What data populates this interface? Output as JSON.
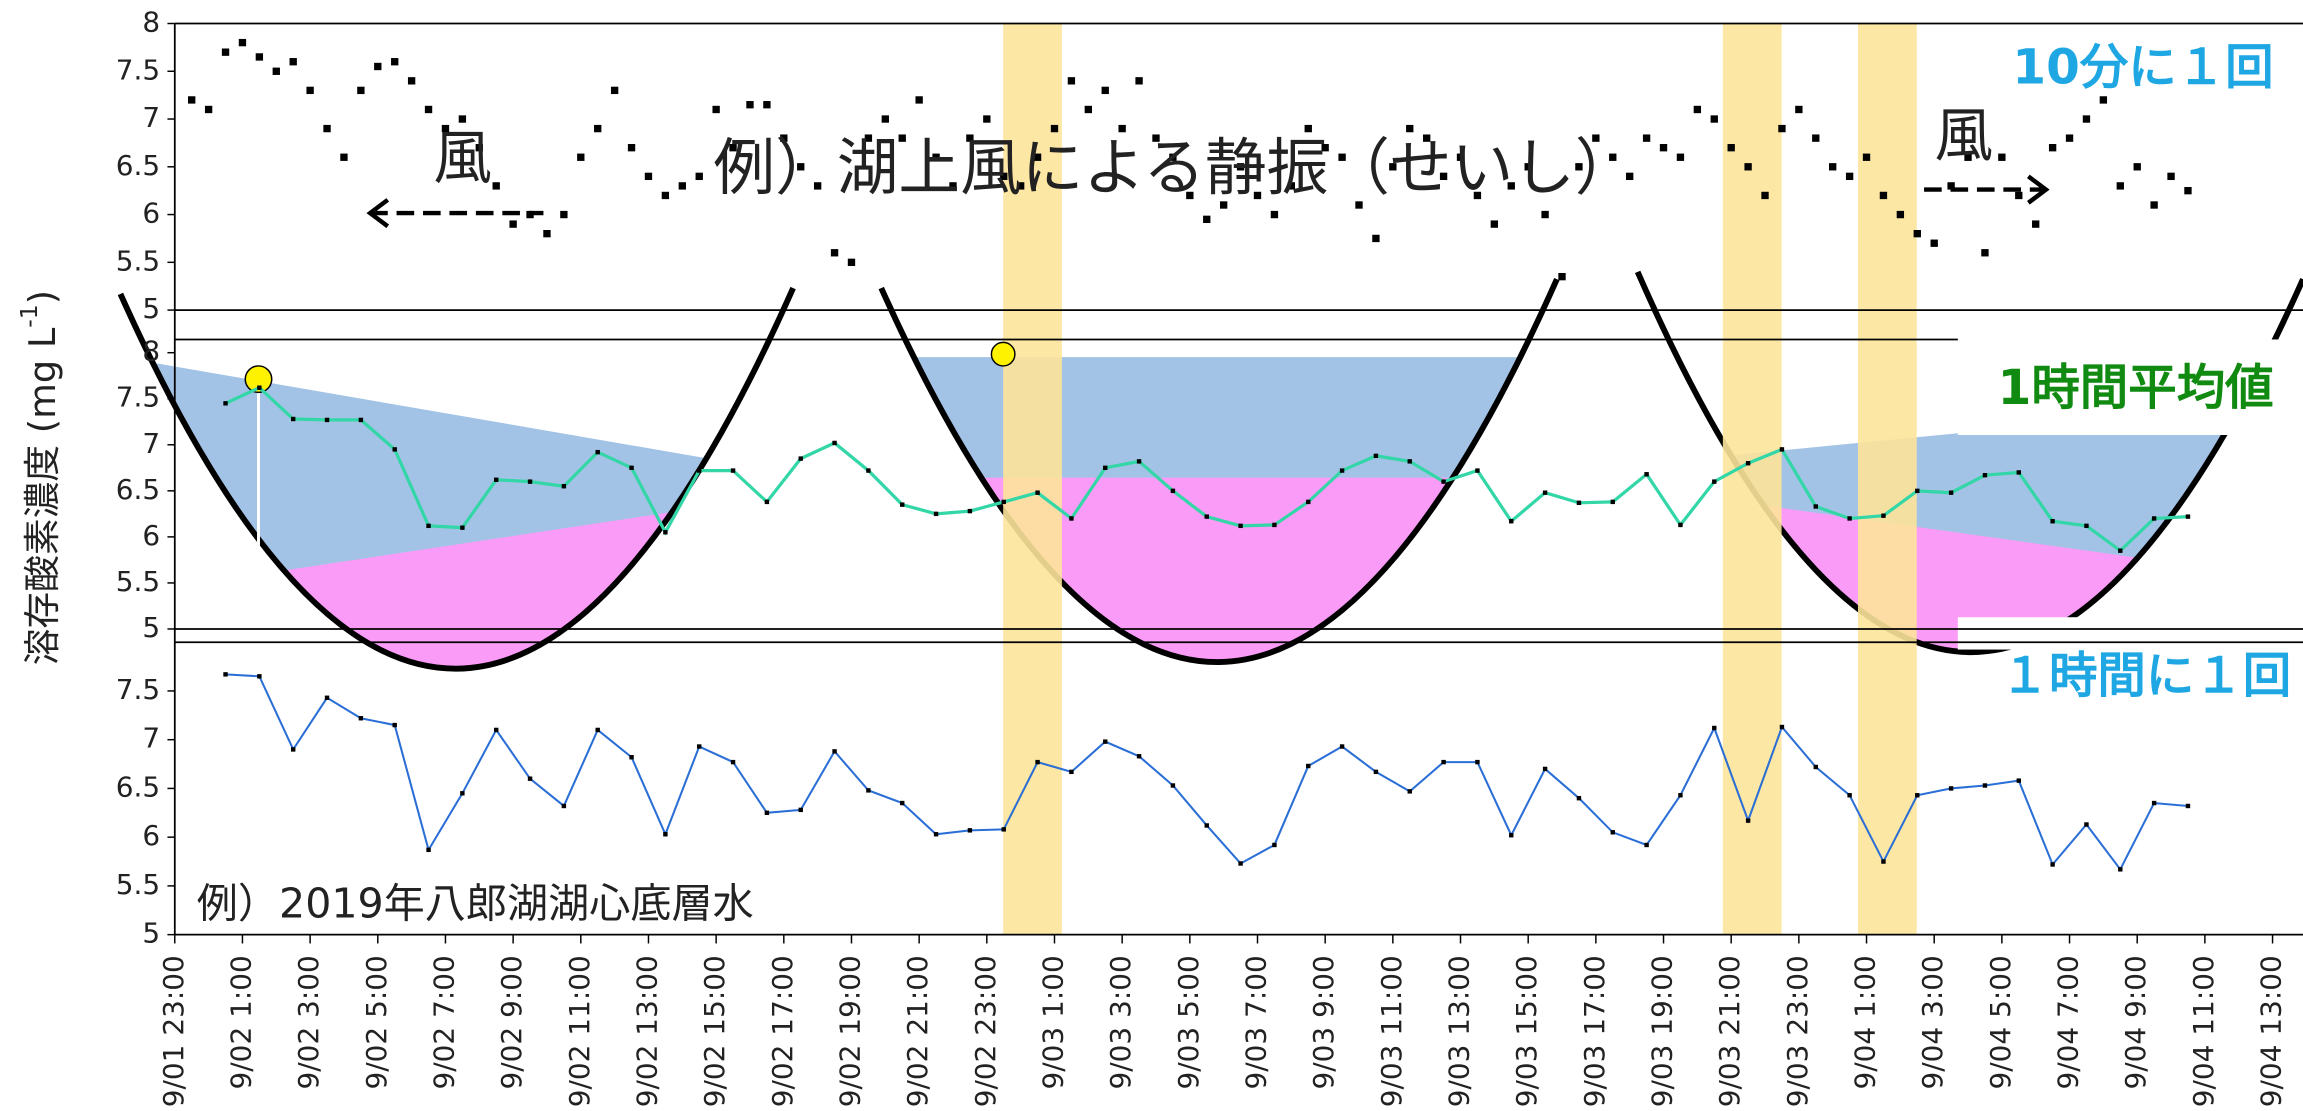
{
  "chart_data": [
    {
      "type": "scatter",
      "color": "#000000",
      "annotations": [
        "10分に１回",
        "例）湖上風による静振（せいし）",
        "風",
        "風"
      ],
      "xlim": [
        0,
        62.9
      ],
      "ylim": [
        5,
        8
      ],
      "yticks": [
        5,
        5.5,
        6,
        6.5,
        7,
        7.5,
        8
      ],
      "x": [
        0.5,
        1,
        1.5,
        2,
        2.5,
        3,
        3.5,
        4,
        4.5,
        5,
        5.5,
        6,
        6.5,
        7,
        7.5,
        8,
        8.5,
        9,
        9.5,
        10,
        10.5,
        11,
        11.5,
        12,
        12.5,
        13,
        13.5,
        14,
        14.5,
        15,
        15.5,
        16,
        16.5,
        17,
        17.5,
        18,
        18.5,
        19,
        19.5,
        20,
        20.5,
        21,
        21.5,
        22,
        22.5,
        23,
        23.5,
        24,
        24.5,
        25,
        25.5,
        26,
        26.5,
        27,
        27.5,
        28,
        28.5,
        29,
        29.5,
        30,
        30.5,
        31,
        31.5,
        32,
        32.5,
        33,
        33.5,
        34,
        34.5,
        35,
        35.5,
        36,
        36.5,
        37,
        37.5,
        38,
        38.5,
        39,
        39.5,
        40,
        40.5,
        41,
        41.5,
        42,
        42.5,
        43,
        43.5,
        44,
        44.5,
        45,
        45.5,
        46,
        46.5,
        47,
        47.5,
        48,
        48.5,
        49,
        49.5,
        50,
        50.5,
        51,
        51.5,
        52,
        52.5,
        53,
        53.5,
        54,
        54.5,
        55,
        55.5,
        56,
        56.5,
        57,
        57.5,
        58,
        58.5,
        59,
        59.5
      ],
      "values": [
        7.2,
        7.1,
        7.7,
        7.8,
        7.65,
        7.5,
        7.6,
        7.3,
        6.9,
        6.6,
        7.3,
        7.55,
        7.6,
        7.4,
        7.1,
        6.9,
        7.0,
        6.7,
        6.3,
        5.9,
        6.0,
        5.8,
        6.0,
        6.6,
        6.9,
        7.3,
        6.7,
        6.4,
        6.2,
        6.3,
        6.4,
        7.1,
        6.7,
        7.15,
        7.15,
        6.8,
        6.5,
        6.3,
        5.6,
        5.5,
        6.8,
        7.0,
        6.8,
        7.2,
        6.6,
        6.3,
        6.8,
        7.0,
        6.4,
        6.3,
        6.6,
        6.9,
        7.4,
        7.1,
        7.3,
        6.9,
        7.4,
        6.8,
        6.6,
        6.2,
        5.95,
        6.1,
        6.5,
        6.2,
        6.0,
        6.3,
        6.9,
        6.7,
        6.6,
        6.1,
        5.75,
        6.5,
        6.9,
        6.8,
        6.4,
        6.6,
        6.2,
        5.9,
        6.3,
        6.5,
        6.0,
        5.35,
        6.5,
        6.8,
        6.6,
        6.4,
        6.8,
        6.7,
        6.6,
        7.1,
        7.0,
        6.7,
        6.5,
        6.2,
        6.9,
        7.1,
        6.8,
        6.5,
        6.4,
        6.6,
        6.2,
        6.0,
        5.8,
        5.7,
        6.3,
        6.6,
        5.6,
        6.6,
        6.2,
        5.9,
        6.7,
        6.8,
        7.0,
        7.2,
        6.3,
        6.5,
        6.1,
        6.4,
        6.25
      ]
    },
    {
      "type": "line",
      "color": "#33d6a6",
      "annotations": [
        "1時間平均値"
      ],
      "xlim": [
        0,
        62.9
      ],
      "ylim": [
        5,
        8
      ],
      "yticks": [
        5,
        5.5,
        6,
        6.5,
        7,
        7.5,
        8
      ],
      "x": [
        1.5,
        2.5,
        3.5,
        4.5,
        5.5,
        6.5,
        7.5,
        8.5,
        9.5,
        10.5,
        11.5,
        12.5,
        13.5,
        14.5,
        15.5,
        16.5,
        17.5,
        18.5,
        19.5,
        20.5,
        21.5,
        22.5,
        23.5,
        24.5,
        25.5,
        26.5,
        27.5,
        28.5,
        29.5,
        30.5,
        31.5,
        32.5,
        33.5,
        34.5,
        35.5,
        36.5,
        37.5,
        38.5,
        39.5,
        40.5,
        41.5,
        42.5,
        43.5,
        44.5,
        45.5,
        46.5,
        47.5,
        48.5,
        49.5,
        50.5,
        51.5,
        52.5,
        53.5,
        54.5,
        55.5,
        56.5,
        57.5,
        58.5,
        59.5
      ],
      "values": [
        7.45,
        7.62,
        7.28,
        7.27,
        7.27,
        6.95,
        6.12,
        6.1,
        6.62,
        6.6,
        6.55,
        6.92,
        6.75,
        6.05,
        6.72,
        6.72,
        6.38,
        6.85,
        7.02,
        6.72,
        6.35,
        6.25,
        6.28,
        6.38,
        6.48,
        6.2,
        6.75,
        6.82,
        6.5,
        6.22,
        6.12,
        6.13,
        6.38,
        6.72,
        6.88,
        6.82,
        6.6,
        6.72,
        6.17,
        6.48,
        6.37,
        6.38,
        6.68,
        6.13,
        6.6,
        6.8,
        6.95,
        6.33,
        6.2,
        6.23,
        6.5,
        6.48,
        6.67,
        6.7,
        6.17,
        6.12,
        5.85,
        6.2,
        6.22
      ]
    },
    {
      "type": "line",
      "color": "#2b6fd6",
      "annotations": [
        "１時間に１回",
        "例）2019年八郎湖湖心底層水"
      ],
      "ylabel": "溶存酸素濃度 (mg L",
      "ylabel_sup": "-1",
      "ylabel_end": ")",
      "xlim": [
        0,
        62.9
      ],
      "ylim": [
        5,
        8
      ],
      "yticks": [
        5,
        5.5,
        6,
        6.5,
        7,
        7.5
      ],
      "xticks": [
        {
          "value": 0,
          "label": "9/01 23:00"
        },
        {
          "value": 2,
          "label": "9/02 1:00"
        },
        {
          "value": 4,
          "label": "9/02 3:00"
        },
        {
          "value": 6,
          "label": "9/02 5:00"
        },
        {
          "value": 8,
          "label": "9/02 7:00"
        },
        {
          "value": 10,
          "label": "9/02 9:00"
        },
        {
          "value": 12,
          "label": "9/02 11:00"
        },
        {
          "value": 14,
          "label": "9/02 13:00"
        },
        {
          "value": 16,
          "label": "9/02 15:00"
        },
        {
          "value": 18,
          "label": "9/02 17:00"
        },
        {
          "value": 20,
          "label": "9/02 19:00"
        },
        {
          "value": 22,
          "label": "9/02 21:00"
        },
        {
          "value": 24,
          "label": "9/02 23:00"
        },
        {
          "value": 26,
          "label": "9/03 1:00"
        },
        {
          "value": 28,
          "label": "9/03 3:00"
        },
        {
          "value": 30,
          "label": "9/03 5:00"
        },
        {
          "value": 32,
          "label": "9/03 7:00"
        },
        {
          "value": 34,
          "label": "9/03 9:00"
        },
        {
          "value": 36,
          "label": "9/03 11:00"
        },
        {
          "value": 38,
          "label": "9/03 13:00"
        },
        {
          "value": 40,
          "label": "9/03 15:00"
        },
        {
          "value": 42,
          "label": "9/03 17:00"
        },
        {
          "value": 44,
          "label": "9/03 19:00"
        },
        {
          "value": 46,
          "label": "9/03 21:00"
        },
        {
          "value": 48,
          "label": "9/03 23:00"
        },
        {
          "value": 50,
          "label": "9/04 1:00"
        },
        {
          "value": 52,
          "label": "9/04 3:00"
        },
        {
          "value": 54,
          "label": "9/04 5:00"
        },
        {
          "value": 56,
          "label": "9/04 7:00"
        },
        {
          "value": 58,
          "label": "9/04 9:00"
        },
        {
          "value": 60,
          "label": "9/04 11:00"
        },
        {
          "value": 62,
          "label": "9/04 13:00"
        }
      ],
      "x": [
        1.5,
        2.5,
        3.5,
        4.5,
        5.5,
        6.5,
        7.5,
        8.5,
        9.5,
        10.5,
        11.5,
        12.5,
        13.5,
        14.5,
        15.5,
        16.5,
        17.5,
        18.5,
        19.5,
        20.5,
        21.5,
        22.5,
        23.5,
        24.5,
        25.5,
        26.5,
        27.5,
        28.5,
        29.5,
        30.5,
        31.5,
        32.5,
        33.5,
        34.5,
        35.5,
        36.5,
        37.5,
        38.5,
        39.5,
        40.5,
        41.5,
        42.5,
        43.5,
        44.5,
        45.5,
        46.5,
        47.5,
        48.5,
        49.5,
        50.5,
        51.5,
        52.5,
        53.5,
        54.5,
        55.5,
        56.5,
        57.5,
        58.5,
        59.5
      ],
      "values": [
        7.67,
        7.65,
        6.9,
        7.43,
        7.22,
        7.15,
        5.87,
        6.45,
        7.1,
        6.6,
        6.32,
        7.1,
        6.82,
        6.03,
        6.93,
        6.77,
        6.25,
        6.28,
        6.88,
        6.48,
        6.35,
        6.03,
        6.07,
        6.08,
        6.77,
        6.67,
        6.98,
        6.83,
        6.53,
        6.12,
        5.73,
        5.92,
        6.73,
        6.93,
        6.67,
        6.47,
        6.77,
        6.77,
        6.02,
        6.7,
        6.4,
        6.05,
        5.92,
        6.43,
        7.12,
        6.17,
        7.13,
        6.72,
        6.43,
        5.75,
        6.43,
        6.5,
        6.53,
        6.58,
        5.72,
        6.13,
        5.67,
        6.35,
        6.32
      ]
    }
  ]
}
